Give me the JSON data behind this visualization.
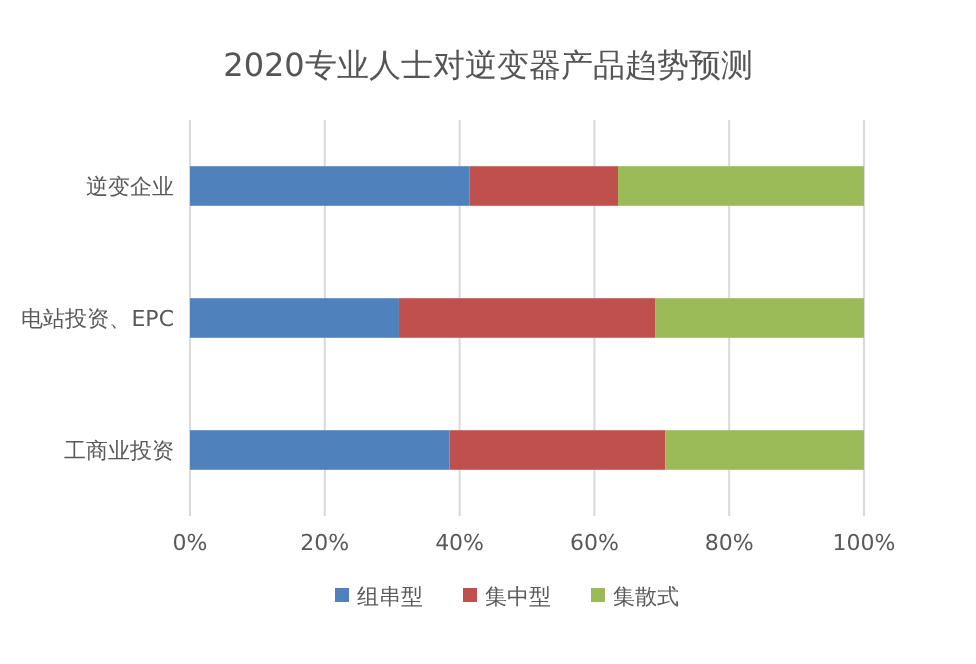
{
  "chart_data": {
    "type": "bar",
    "orientation": "horizontal",
    "stacked": true,
    "title": "2020专业人士对逆变器产品趋势预测",
    "categories": [
      "逆变企业",
      "电站投资、EPC",
      "工商业投资"
    ],
    "series": [
      {
        "name": "组串型",
        "color": "#4f81bd",
        "values": [
          41.5,
          31,
          38.5
        ]
      },
      {
        "name": "集中型",
        "color": "#c0504d",
        "values": [
          22,
          38,
          32
        ]
      },
      {
        "name": "集散式",
        "color": "#9bbb59",
        "values": [
          36.5,
          31,
          29.5
        ]
      }
    ],
    "xlim": [
      0,
      100
    ],
    "xticks": [
      {
        "value": 0,
        "label": "0%"
      },
      {
        "value": 20,
        "label": "20%"
      },
      {
        "value": 40,
        "label": "40%"
      },
      {
        "value": 60,
        "label": "60%"
      },
      {
        "value": 80,
        "label": "80%"
      },
      {
        "value": 100,
        "label": "100%"
      }
    ],
    "grid": "x",
    "legend": "bottom"
  }
}
